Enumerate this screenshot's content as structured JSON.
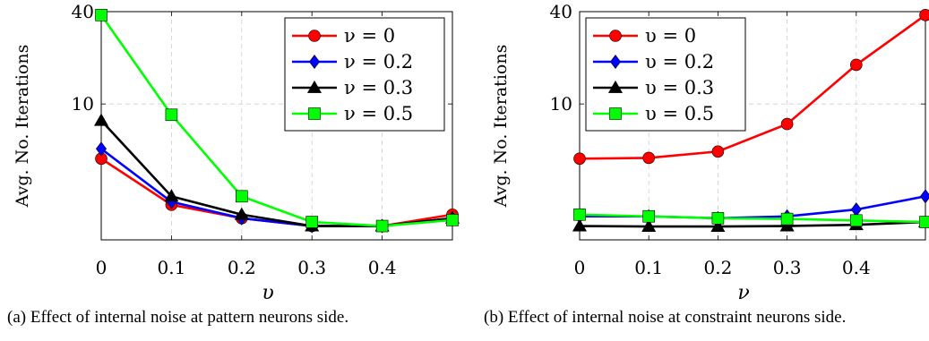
{
  "figure": {
    "captions": [
      "(a) Effect of internal noise at pattern neurons side.",
      "(b) Effect of internal noise at constraint neurons side."
    ]
  },
  "chart_data": [
    {
      "type": "line",
      "xlabel": "υ",
      "ylabel": "Avg. No. Iterations",
      "x": [
        0,
        0.1,
        0.2,
        0.3,
        0.4,
        0.5
      ],
      "xticks": [
        "0",
        "0.1",
        "0.2",
        "0.3",
        "0.4"
      ],
      "yticks": [
        "10",
        "40"
      ],
      "xlim": [
        0,
        0.5
      ],
      "ylim": [
        1.3,
        40
      ],
      "yscale": "log",
      "grid": true,
      "legend_position": "top-right",
      "series": [
        {
          "name": "ν = 0",
          "color": "#ff0000",
          "marker": "circle",
          "values": [
            4.4,
            2.2,
            1.8,
            1.6,
            1.6,
            1.9
          ]
        },
        {
          "name": "ν = 0.2",
          "color": "#0000ff",
          "marker": "diamond",
          "values": [
            5.1,
            2.3,
            1.8,
            1.6,
            1.6,
            1.8
          ]
        },
        {
          "name": "ν = 0.3",
          "color": "#000000",
          "marker": "triangle",
          "values": [
            7.8,
            2.5,
            1.9,
            1.6,
            1.6,
            1.8
          ]
        },
        {
          "name": "ν = 0.5",
          "color": "#00ff00",
          "marker": "square",
          "values": [
            38,
            8.5,
            2.5,
            1.7,
            1.6,
            1.75
          ]
        }
      ]
    },
    {
      "type": "line",
      "xlabel": "ν",
      "ylabel": "Avg. No. Iterations",
      "x": [
        0,
        0.1,
        0.2,
        0.3,
        0.4,
        0.5
      ],
      "xticks": [
        "0",
        "0.1",
        "0.2",
        "0.3",
        "0.4"
      ],
      "yticks": [
        "10",
        "40"
      ],
      "xlim": [
        0,
        0.5
      ],
      "ylim": [
        1.3,
        40
      ],
      "yscale": "log",
      "grid": true,
      "legend_position": "top-left",
      "series": [
        {
          "name": "υ = 0",
          "color": "#ff0000",
          "marker": "circle",
          "values": [
            4.4,
            4.45,
            4.9,
            7.4,
            18,
            38
          ]
        },
        {
          "name": "υ = 0.2",
          "color": "#0000ff",
          "marker": "diamond",
          "values": [
            1.85,
            1.85,
            1.8,
            1.85,
            2.05,
            2.5
          ]
        },
        {
          "name": "υ = 0.3",
          "color": "#000000",
          "marker": "triangle",
          "values": [
            1.6,
            1.59,
            1.59,
            1.6,
            1.63,
            1.7
          ]
        },
        {
          "name": "υ = 0.5",
          "color": "#00ff00",
          "marker": "square",
          "values": [
            1.9,
            1.85,
            1.8,
            1.78,
            1.74,
            1.7
          ]
        }
      ]
    }
  ]
}
